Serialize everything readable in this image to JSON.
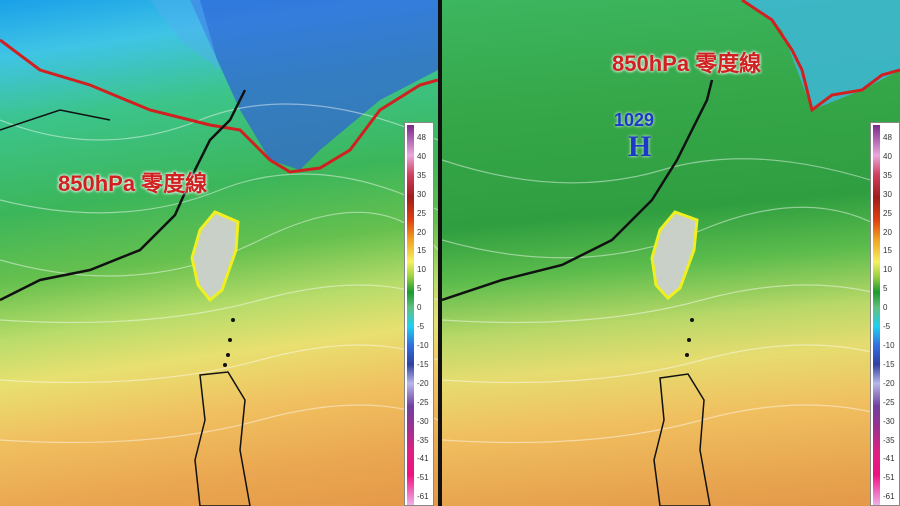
{
  "left_panel": {
    "zero_line_label": "850hPa 零度線"
  },
  "right_panel": {
    "zero_line_label": "850hPa 零度線",
    "high_pressure": {
      "value": "1029",
      "symbol": "H"
    }
  },
  "colorbar": {
    "ticks": [
      "48",
      "40",
      "35",
      "30",
      "25",
      "20",
      "15",
      "10",
      "5",
      "0",
      "-5",
      "-10",
      "-15",
      "-20",
      "-25",
      "-30",
      "-35",
      "-41",
      "-51",
      "-61"
    ]
  },
  "colors": {
    "zero_line": "#d02020",
    "taiwan_outline": "#f0f020",
    "high_label": "#1a3ac8"
  }
}
